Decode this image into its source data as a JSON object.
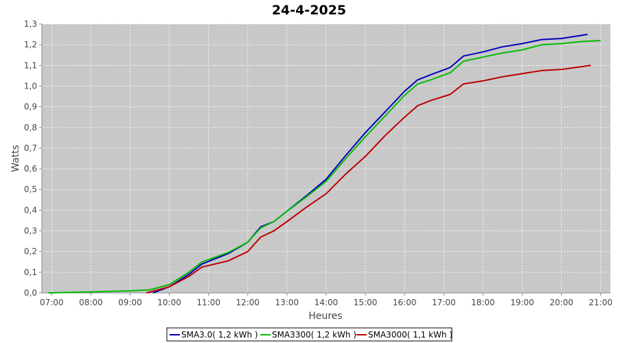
{
  "chart_data": {
    "type": "line",
    "title": "24-4-2025",
    "xlabel": "Heures",
    "ylabel": "Watts",
    "xlim": [
      "06:45",
      "21:15"
    ],
    "ylim": [
      0,
      1.3
    ],
    "x_ticks": [
      "07:00",
      "08:00",
      "09:00",
      "10:00",
      "11:00",
      "12:00",
      "13:00",
      "14:00",
      "15:00",
      "16:00",
      "17:00",
      "18:00",
      "19:00",
      "20:00",
      "21:00"
    ],
    "y_ticks": [
      "0,0",
      "0,1",
      "0,2",
      "0,3",
      "0,4",
      "0,5",
      "0,6",
      "0,7",
      "0,8",
      "0,9",
      "1,0",
      "1,1",
      "1,2",
      "1,3"
    ],
    "grid": true,
    "legend_position": "bottom",
    "series": [
      {
        "name": "SMA3.0",
        "legend_label": "SMA3.0( 1,2 kWh )",
        "color": "#0000bb",
        "x": [
          "09:35",
          "10:00",
          "10:30",
          "10:50",
          "11:30",
          "12:00",
          "12:20",
          "12:40",
          "13:00",
          "13:30",
          "14:00",
          "14:30",
          "15:00",
          "15:30",
          "16:00",
          "16:20",
          "16:40",
          "17:10",
          "17:30",
          "18:00",
          "18:30",
          "19:00",
          "19:30",
          "20:00",
          "20:40"
        ],
        "values": [
          0.0,
          0.03,
          0.09,
          0.14,
          0.19,
          0.245,
          0.32,
          0.345,
          0.395,
          0.47,
          0.55,
          0.665,
          0.775,
          0.875,
          0.975,
          1.03,
          1.055,
          1.09,
          1.145,
          1.165,
          1.19,
          1.205,
          1.225,
          1.23,
          1.25
        ]
      },
      {
        "name": "SMA3300",
        "legend_label": "SMA3300( 1,2 kWh )",
        "color": "#00bb00",
        "x": [
          "06:55",
          "08:00",
          "09:00",
          "09:30",
          "10:00",
          "10:30",
          "10:50",
          "11:30",
          "12:00",
          "12:20",
          "12:40",
          "13:00",
          "13:30",
          "14:00",
          "14:30",
          "15:00",
          "15:30",
          "16:00",
          "16:20",
          "16:40",
          "17:10",
          "17:30",
          "18:00",
          "18:30",
          "19:00",
          "19:30",
          "20:00",
          "20:30",
          "21:00"
        ],
        "values": [
          0.0,
          0.005,
          0.01,
          0.015,
          0.04,
          0.1,
          0.15,
          0.195,
          0.245,
          0.315,
          0.345,
          0.395,
          0.465,
          0.54,
          0.65,
          0.755,
          0.855,
          0.955,
          1.01,
          1.03,
          1.065,
          1.12,
          1.14,
          1.16,
          1.175,
          1.2,
          1.205,
          1.215,
          1.22
        ]
      },
      {
        "name": "SMA3000",
        "legend_label": "SMA3000( 1,1 kWh )",
        "color": "#bb0000",
        "x": [
          "09:25",
          "10:00",
          "10:30",
          "10:50",
          "11:30",
          "12:00",
          "12:20",
          "12:40",
          "13:00",
          "13:30",
          "14:00",
          "14:30",
          "15:00",
          "15:30",
          "16:00",
          "16:20",
          "16:40",
          "17:10",
          "17:30",
          "18:00",
          "18:30",
          "19:00",
          "19:30",
          "20:00",
          "20:45"
        ],
        "values": [
          0.0,
          0.03,
          0.08,
          0.125,
          0.155,
          0.2,
          0.27,
          0.3,
          0.345,
          0.415,
          0.48,
          0.575,
          0.66,
          0.76,
          0.85,
          0.905,
          0.93,
          0.96,
          1.01,
          1.025,
          1.045,
          1.06,
          1.075,
          1.08,
          1.1
        ]
      }
    ]
  }
}
